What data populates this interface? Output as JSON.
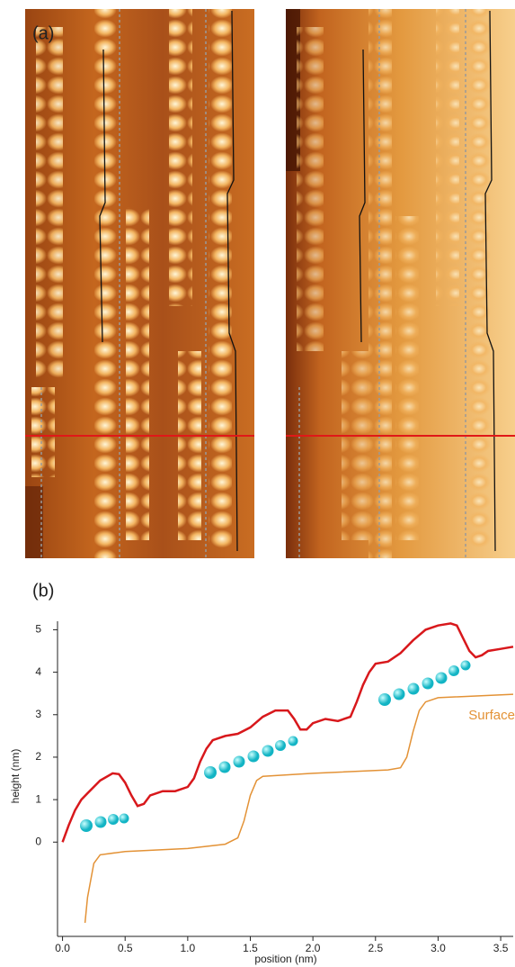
{
  "panel_a": {
    "label": "(a)"
  },
  "chart_data": {
    "type": "line",
    "panel_label": "(b)",
    "x_label": "position (nm)",
    "y_label": "height (nm)",
    "xlim": [
      -0.04,
      3.6
    ],
    "ylim": [
      -2.22,
      5.2
    ],
    "xticks": [
      {
        "value": 0,
        "label": "0.0"
      },
      0.5,
      {
        "value": 1,
        "label": "1.0"
      },
      1.5,
      {
        "value": 2,
        "label": "2.0"
      },
      2.5,
      {
        "value": 3,
        "label": "3.0"
      },
      3.5
    ],
    "yticks": [
      0,
      1,
      2,
      3,
      4,
      5
    ],
    "series": [
      {
        "color": "#d8181c",
        "x": [
          0.0,
          0.05,
          0.1,
          0.15,
          0.2,
          0.3,
          0.4,
          0.45,
          0.5,
          0.55,
          0.6,
          0.65,
          0.7,
          0.8,
          0.9,
          1.0,
          1.05,
          1.1,
          1.15,
          1.2,
          1.3,
          1.4,
          1.5,
          1.6,
          1.7,
          1.8,
          1.85,
          1.9,
          1.95,
          2.0,
          2.1,
          2.2,
          2.3,
          2.35,
          2.4,
          2.45,
          2.5,
          2.6,
          2.7,
          2.8,
          2.9,
          3.0,
          3.1,
          3.15,
          3.2,
          3.25,
          3.3,
          3.35,
          3.4,
          3.5,
          3.6
        ],
        "values": [
          0.0,
          0.4,
          0.75,
          1.0,
          1.15,
          1.45,
          1.62,
          1.6,
          1.4,
          1.1,
          0.85,
          0.9,
          1.1,
          1.2,
          1.2,
          1.3,
          1.5,
          1.9,
          2.2,
          2.4,
          2.5,
          2.55,
          2.7,
          2.95,
          3.1,
          3.1,
          2.9,
          2.65,
          2.65,
          2.8,
          2.9,
          2.85,
          2.95,
          3.3,
          3.7,
          4.0,
          4.2,
          4.25,
          4.45,
          4.75,
          5.0,
          5.1,
          5.15,
          5.1,
          4.8,
          4.5,
          4.35,
          4.4,
          4.5,
          4.55,
          4.6
        ]
      },
      {
        "name": "Surface",
        "color": "#e39236",
        "x": [
          0.18,
          0.2,
          0.25,
          0.3,
          0.5,
          1.0,
          1.3,
          1.4,
          1.45,
          1.5,
          1.55,
          1.6,
          2.0,
          2.6,
          2.7,
          2.75,
          2.8,
          2.85,
          2.9,
          3.0,
          3.6
        ],
        "values": [
          -1.9,
          -1.3,
          -0.5,
          -0.3,
          -0.22,
          -0.15,
          -0.05,
          0.1,
          0.5,
          1.1,
          1.45,
          1.55,
          1.62,
          1.7,
          1.75,
          2.0,
          2.6,
          3.1,
          3.3,
          3.4,
          3.48
        ]
      }
    ]
  }
}
